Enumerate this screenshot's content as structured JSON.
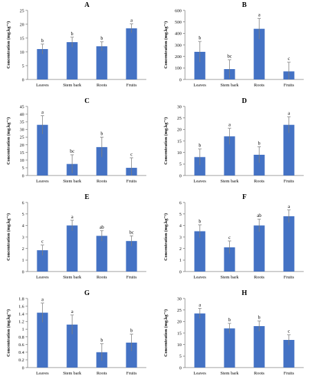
{
  "figure": {
    "title": ""
  },
  "chart_data": [
    {
      "type": "bar",
      "panel_label": "A",
      "categories": [
        "Leaves",
        "Stem bark",
        "Roots",
        "Fruits"
      ],
      "values": [
        11,
        13.5,
        12,
        18.5
      ],
      "errors": [
        1.8,
        1.8,
        1.6,
        1.6
      ],
      "letters": [
        "b",
        "b",
        "b",
        "a"
      ],
      "ylabel": "Concentration (mg.kg⁻¹)",
      "ylim": [
        0,
        25
      ],
      "yticks": [
        0,
        5,
        10,
        15,
        20,
        25
      ],
      "color": "#4472C4",
      "grid": false
    },
    {
      "type": "bar",
      "panel_label": "B",
      "categories": [
        "Leaves",
        "Stem bark",
        "Roots",
        "Fruits"
      ],
      "values": [
        240,
        90,
        440,
        70
      ],
      "errors": [
        90,
        80,
        90,
        80
      ],
      "letters": [
        "b",
        "bc",
        "a",
        "c"
      ],
      "ylabel": "Concentration (mg.kg⁻¹)",
      "ylim": [
        0,
        600
      ],
      "yticks": [
        0,
        100,
        200,
        300,
        400,
        500,
        600
      ],
      "color": "#4472C4",
      "grid": false
    },
    {
      "type": "bar",
      "panel_label": "C",
      "categories": [
        "Leaves",
        "Stem bark",
        "Roots",
        "Fruits"
      ],
      "values": [
        33,
        7.5,
        18.5,
        5
      ],
      "errors": [
        6,
        6,
        6.5,
        6.5
      ],
      "letters": [
        "a",
        "bc",
        "b",
        "c"
      ],
      "ylabel": "Concentration (mg.kg⁻¹)",
      "ylim": [
        0,
        45
      ],
      "yticks": [
        0,
        5,
        10,
        15,
        20,
        25,
        30,
        35,
        40,
        45
      ],
      "color": "#4472C4",
      "grid": false
    },
    {
      "type": "bar",
      "panel_label": "D",
      "categories": [
        "Leaves",
        "Stem bark",
        "Roots",
        "Fruits"
      ],
      "values": [
        8,
        17,
        9,
        22
      ],
      "errors": [
        3.5,
        3.5,
        3.5,
        3.5
      ],
      "letters": [
        "b",
        "a",
        "b",
        "a"
      ],
      "ylabel": "Concentration (mg.kg⁻¹)",
      "ylim": [
        0,
        30
      ],
      "yticks": [
        0,
        5,
        10,
        15,
        20,
        25,
        30
      ],
      "color": "#4472C4",
      "grid": false
    },
    {
      "type": "bar",
      "panel_label": "E",
      "categories": [
        "Leaves",
        "Stem bark",
        "Roots",
        "Fruits"
      ],
      "values": [
        1.85,
        4.0,
        3.1,
        2.65
      ],
      "errors": [
        0.45,
        0.45,
        0.45,
        0.45
      ],
      "letters": [
        "c",
        "a",
        "ab",
        "bc"
      ],
      "ylabel": "Concentration (mg.kg⁻¹)",
      "ylim": [
        0,
        6
      ],
      "yticks": [
        0,
        1,
        2,
        3,
        4,
        5,
        6
      ],
      "color": "#4472C4",
      "grid": false
    },
    {
      "type": "bar",
      "panel_label": "F",
      "categories": [
        "Leaves",
        "Stem bark",
        "Roots",
        "Fruits"
      ],
      "values": [
        3.5,
        2.1,
        4.0,
        4.8
      ],
      "errors": [
        0.55,
        0.55,
        0.55,
        0.55
      ],
      "letters": [
        "b",
        "c",
        "ab",
        "a"
      ],
      "ylabel": "Concentration (mg.kg⁻¹)",
      "ylim": [
        0,
        6
      ],
      "yticks": [
        0,
        1,
        2,
        3,
        4,
        5,
        6
      ],
      "color": "#4472C4",
      "grid": false
    },
    {
      "type": "bar",
      "panel_label": "G",
      "categories": [
        "Leaves",
        "Stem bark",
        "Roots",
        "Fruits"
      ],
      "values": [
        1.43,
        1.12,
        0.4,
        0.65
      ],
      "errors": [
        0.25,
        0.25,
        0.22,
        0.22
      ],
      "letters": [
        "a",
        "a",
        "b",
        "b"
      ],
      "ylabel": "Concentration (mg.kg⁻¹)",
      "ylim": [
        0,
        1.8
      ],
      "yticks": [
        0,
        0.2,
        0.4,
        0.6,
        0.8,
        1,
        1.2,
        1.4,
        1.6,
        1.8
      ],
      "color": "#4472C4",
      "grid": false
    },
    {
      "type": "bar",
      "panel_label": "H",
      "categories": [
        "Leaves",
        "Stem bark",
        "Roots",
        "Fruits"
      ],
      "values": [
        23.5,
        17,
        18,
        12
      ],
      "errors": [
        2.2,
        2.2,
        2.2,
        2.2
      ],
      "letters": [
        "a",
        "b",
        "b",
        "c"
      ],
      "ylabel": "Concentration (mg.kg⁻¹)",
      "ylim": [
        0,
        30
      ],
      "yticks": [
        0,
        5,
        10,
        15,
        20,
        25,
        30
      ],
      "color": "#4472C4",
      "grid": false
    }
  ]
}
